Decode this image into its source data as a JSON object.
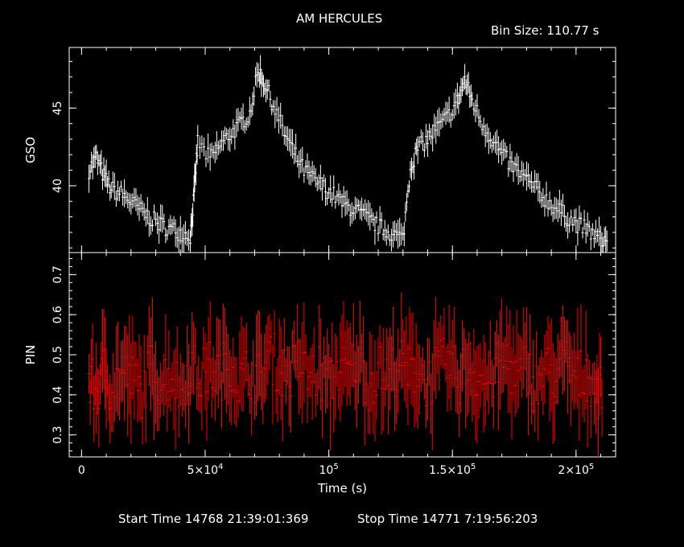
{
  "chart_data": {
    "type": "scatter",
    "title": "AM HERCULES",
    "bin_size_label": "Bin Size:  110.77 s",
    "xlabel": "Time (s)",
    "xlim": [
      -5000,
      216000
    ],
    "x_ticks": [
      {
        "value": 0,
        "label": "0"
      },
      {
        "value": 50000,
        "label": "5×10",
        "exp": "4"
      },
      {
        "value": 100000,
        "label": "10",
        "exp": "5"
      },
      {
        "value": 150000,
        "label": "1.5×10",
        "exp": "5"
      },
      {
        "value": 200000,
        "label": "2×10",
        "exp": "5"
      }
    ],
    "footer": {
      "start": "Start Time 14768  21:39:01:369",
      "stop": "Stop Time 14771   7:19:56:203"
    },
    "panels": [
      {
        "ylabel": "GSO",
        "color": "#ffffff",
        "ylim": [
          35.7,
          48.9
        ],
        "y_ticks": [
          40,
          45
        ],
        "series": [
          {
            "x": [
              3000,
              6000,
              9000,
              12000,
              16000,
              20000,
              24000,
              28000,
              32000,
              36000,
              40000,
              44000,
              45500,
              47000,
              52000,
              56000,
              60000,
              64000,
              68000,
              71500,
              74000,
              77500,
              82000,
              86000,
              90000,
              94000,
              98000,
              102000,
              106000,
              110000,
              114000,
              118000,
              122000,
              126000,
              130000,
              133000,
              136000,
              140000,
              144000,
              148000,
              152000,
              155000,
              158000,
              162000,
              166000,
              170000,
              174000,
              178000,
              182000,
              186000,
              190000,
              194000,
              198000,
              202000,
              206000,
              210000
            ],
            "y": [
              41.0,
              41.8,
              40.6,
              39.8,
              39.5,
              39.0,
              38.4,
              37.9,
              37.5,
              37.2,
              37.0,
              36.8,
              39.4,
              42.8,
              41.7,
              42.6,
              43.3,
              43.9,
              44.7,
              47.4,
              46.6,
              45.2,
              43.4,
              42.1,
              41.0,
              40.4,
              39.9,
              39.4,
              38.8,
              38.5,
              38.1,
              37.6,
              37.2,
              36.9,
              36.6,
              41.2,
              42.4,
              43.0,
              43.7,
              44.4,
              45.4,
              46.8,
              45.5,
              44.0,
              43.0,
              42.0,
              41.3,
              40.7,
              40.1,
              39.4,
              38.8,
              38.3,
              37.8,
              37.4,
              37.0,
              36.5
            ]
          }
        ]
      },
      {
        "ylabel": "PIN",
        "color": "#ff0000",
        "ylim": [
          0.245,
          0.755
        ],
        "y_ticks": [
          0.3,
          0.4,
          0.5,
          0.6,
          0.7
        ],
        "series": [
          {
            "x": [
              3000,
              6000,
              9000,
              12000,
              16000,
              20000,
              24000,
              28000,
              32000,
              36000,
              40000,
              44000,
              48000,
              52000,
              56000,
              60000,
              64000,
              68000,
              72000,
              76000,
              80000,
              84000,
              88000,
              92000,
              96000,
              100000,
              104000,
              108000,
              112000,
              116000,
              120000,
              124000,
              128000,
              132000,
              136000,
              140000,
              144000,
              148000,
              152000,
              156000,
              160000,
              164000,
              168000,
              172000,
              176000,
              180000,
              184000,
              188000,
              192000,
              196000,
              200000,
              204000,
              208000
            ],
            "y": [
              0.43,
              0.41,
              0.46,
              0.42,
              0.45,
              0.44,
              0.4,
              0.47,
              0.43,
              0.46,
              0.41,
              0.48,
              0.44,
              0.47,
              0.45,
              0.49,
              0.43,
              0.46,
              0.44,
              0.5,
              0.47,
              0.45,
              0.48,
              0.44,
              0.46,
              0.42,
              0.47,
              0.45,
              0.49,
              0.43,
              0.46,
              0.44,
              0.48,
              0.45,
              0.47,
              0.43,
              0.46,
              0.48,
              0.44,
              0.47,
              0.45,
              0.43,
              0.46,
              0.49,
              0.44,
              0.47,
              0.42,
              0.46,
              0.45,
              0.48,
              0.43,
              0.46,
              0.41
            ]
          }
        ]
      }
    ]
  }
}
